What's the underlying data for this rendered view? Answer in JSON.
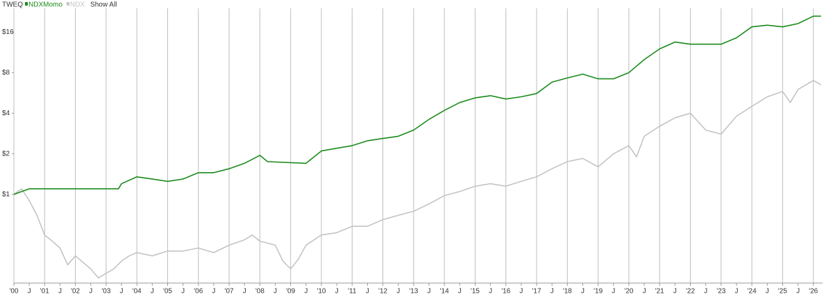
{
  "chart_data": {
    "type": "line",
    "title": "TWEQ",
    "button": "Show All",
    "log_y": true,
    "grid": true,
    "ylim": [
      0.22,
      24
    ],
    "yticks": [
      {
        "value": 1,
        "label": "$1"
      },
      {
        "value": 2,
        "label": "$2"
      },
      {
        "value": 4,
        "label": "$4"
      },
      {
        "value": 8,
        "label": "$8"
      },
      {
        "value": 16,
        "label": "$16"
      }
    ],
    "xlim": [
      2000,
      2026.3
    ],
    "xticks": [
      {
        "value": 2000,
        "label": "'00"
      },
      {
        "value": 2000.5,
        "label": "J"
      },
      {
        "value": 2001,
        "label": "'01"
      },
      {
        "value": 2001.5,
        "label": "J"
      },
      {
        "value": 2002,
        "label": "'02"
      },
      {
        "value": 2002.5,
        "label": "J"
      },
      {
        "value": 2003,
        "label": "'03"
      },
      {
        "value": 2003.5,
        "label": "J"
      },
      {
        "value": 2004,
        "label": "'04"
      },
      {
        "value": 2004.5,
        "label": "J"
      },
      {
        "value": 2005,
        "label": "'05"
      },
      {
        "value": 2005.5,
        "label": "J"
      },
      {
        "value": 2006,
        "label": "'06"
      },
      {
        "value": 2006.5,
        "label": "J"
      },
      {
        "value": 2007,
        "label": "'07"
      },
      {
        "value": 2007.5,
        "label": "J"
      },
      {
        "value": 2008,
        "label": "'08"
      },
      {
        "value": 2008.5,
        "label": "J"
      },
      {
        "value": 2009,
        "label": "'09"
      },
      {
        "value": 2009.5,
        "label": "J"
      },
      {
        "value": 2010,
        "label": "'10"
      },
      {
        "value": 2010.5,
        "label": "J"
      },
      {
        "value": 2011,
        "label": "'11"
      },
      {
        "value": 2011.5,
        "label": "J"
      },
      {
        "value": 2012,
        "label": "'12"
      },
      {
        "value": 2012.5,
        "label": "J"
      },
      {
        "value": 2013,
        "label": "'13"
      },
      {
        "value": 2013.5,
        "label": "J"
      },
      {
        "value": 2014,
        "label": "'14"
      },
      {
        "value": 2014.5,
        "label": "J"
      },
      {
        "value": 2015,
        "label": "'15"
      },
      {
        "value": 2015.5,
        "label": "J"
      },
      {
        "value": 2016,
        "label": "'16"
      },
      {
        "value": 2016.5,
        "label": "J"
      },
      {
        "value": 2017,
        "label": "'17"
      },
      {
        "value": 2017.5,
        "label": "J"
      },
      {
        "value": 2018,
        "label": "'18"
      },
      {
        "value": 2018.5,
        "label": "J"
      },
      {
        "value": 2019,
        "label": "'19"
      },
      {
        "value": 2019.5,
        "label": "J"
      },
      {
        "value": 2020,
        "label": "'20"
      },
      {
        "value": 2020.5,
        "label": "J"
      },
      {
        "value": 2021,
        "label": "'21"
      },
      {
        "value": 2021.5,
        "label": "J"
      },
      {
        "value": 2022,
        "label": "'22"
      },
      {
        "value": 2022.5,
        "label": "J"
      },
      {
        "value": 2023,
        "label": "'23"
      },
      {
        "value": 2023.5,
        "label": "J"
      },
      {
        "value": 2024,
        "label": "'24"
      },
      {
        "value": 2024.5,
        "label": "J"
      },
      {
        "value": 2025,
        "label": "'25"
      },
      {
        "value": 2025.5,
        "label": "J"
      },
      {
        "value": 2026,
        "label": "'26"
      }
    ],
    "series": [
      {
        "name": "NDXMomo",
        "color": "#1a8a1a",
        "x": [
          2000,
          2000.25,
          2000.5,
          2000.75,
          2003.4,
          2003.5,
          2004,
          2004.5,
          2005,
          2005.5,
          2006,
          2006.5,
          2007,
          2007.5,
          2008,
          2008.25,
          2009.5,
          2010,
          2010.5,
          2011,
          2011.5,
          2012,
          2012.5,
          2013,
          2013.5,
          2014,
          2014.5,
          2015,
          2015.5,
          2016,
          2016.5,
          2017,
          2017.5,
          2018,
          2018.5,
          2019,
          2019.5,
          2020,
          2020.5,
          2021,
          2021.5,
          2022,
          2022.5,
          2023,
          2023.5,
          2024,
          2024.5,
          2025,
          2025.5,
          2026,
          2026.25
        ],
        "values": [
          1.0,
          1.05,
          1.1,
          1.1,
          1.1,
          1.2,
          1.35,
          1.3,
          1.25,
          1.3,
          1.45,
          1.45,
          1.55,
          1.7,
          1.95,
          1.75,
          1.7,
          2.1,
          2.2,
          2.3,
          2.5,
          2.6,
          2.7,
          3.0,
          3.6,
          4.2,
          4.8,
          5.2,
          5.4,
          5.1,
          5.3,
          5.6,
          6.8,
          7.3,
          7.8,
          7.2,
          7.2,
          8.0,
          10,
          12,
          13.5,
          13,
          13,
          13,
          14.5,
          17.5,
          18,
          17.5,
          18.5,
          21,
          21
        ]
      },
      {
        "name": "NDX",
        "color": "#c4c4c4",
        "x": [
          2000,
          2000.25,
          2000.5,
          2000.75,
          2001,
          2001.25,
          2001.5,
          2001.75,
          2002,
          2002.5,
          2002.75,
          2003,
          2003.25,
          2003.5,
          2003.75,
          2004,
          2004.5,
          2005,
          2005.5,
          2006,
          2006.5,
          2007,
          2007.5,
          2007.75,
          2008,
          2008.5,
          2008.75,
          2009,
          2009.25,
          2009.5,
          2010,
          2010.5,
          2011,
          2011.5,
          2012,
          2012.5,
          2013,
          2013.5,
          2014,
          2014.5,
          2015,
          2015.5,
          2016,
          2016.5,
          2017,
          2017.5,
          2018,
          2018.5,
          2019,
          2019.5,
          2020,
          2020.25,
          2020.5,
          2021,
          2021.5,
          2022,
          2022.5,
          2023,
          2023.5,
          2024,
          2024.5,
          2025,
          2025.25,
          2025.5,
          2026,
          2026.25
        ],
        "values": [
          1.0,
          1.1,
          0.9,
          0.7,
          0.5,
          0.45,
          0.4,
          0.3,
          0.35,
          0.28,
          0.24,
          0.26,
          0.28,
          0.32,
          0.35,
          0.37,
          0.35,
          0.38,
          0.38,
          0.4,
          0.37,
          0.42,
          0.46,
          0.5,
          0.45,
          0.42,
          0.32,
          0.28,
          0.33,
          0.42,
          0.5,
          0.52,
          0.58,
          0.58,
          0.65,
          0.7,
          0.75,
          0.85,
          0.98,
          1.05,
          1.15,
          1.2,
          1.15,
          1.25,
          1.35,
          1.55,
          1.75,
          1.85,
          1.6,
          2.0,
          2.3,
          1.9,
          2.7,
          3.2,
          3.7,
          4.0,
          3.0,
          2.8,
          3.8,
          4.5,
          5.3,
          5.8,
          4.8,
          6.0,
          7.0,
          6.5
        ]
      }
    ]
  }
}
